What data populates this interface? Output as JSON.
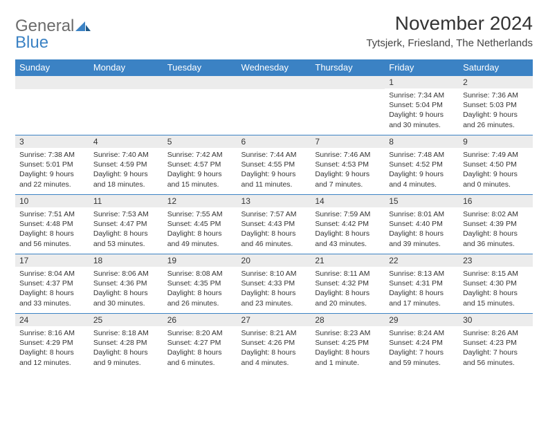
{
  "logo": {
    "text1": "General",
    "text2": "Blue"
  },
  "title": "November 2024",
  "location": "Tytsjerk, Friesland, The Netherlands",
  "colors": {
    "header_bg": "#3b82c4",
    "header_text": "#ffffff",
    "daynum_bg": "#ececec",
    "border": "#3b82c4",
    "body_text": "#333333",
    "logo_gray": "#6b6b6b",
    "logo_blue": "#3b82c4"
  },
  "weekdays": [
    "Sunday",
    "Monday",
    "Tuesday",
    "Wednesday",
    "Thursday",
    "Friday",
    "Saturday"
  ],
  "weeks": [
    [
      null,
      null,
      null,
      null,
      null,
      {
        "n": "1",
        "sr": "Sunrise: 7:34 AM",
        "ss": "Sunset: 5:04 PM",
        "d1": "Daylight: 9 hours",
        "d2": "and 30 minutes."
      },
      {
        "n": "2",
        "sr": "Sunrise: 7:36 AM",
        "ss": "Sunset: 5:03 PM",
        "d1": "Daylight: 9 hours",
        "d2": "and 26 minutes."
      }
    ],
    [
      {
        "n": "3",
        "sr": "Sunrise: 7:38 AM",
        "ss": "Sunset: 5:01 PM",
        "d1": "Daylight: 9 hours",
        "d2": "and 22 minutes."
      },
      {
        "n": "4",
        "sr": "Sunrise: 7:40 AM",
        "ss": "Sunset: 4:59 PM",
        "d1": "Daylight: 9 hours",
        "d2": "and 18 minutes."
      },
      {
        "n": "5",
        "sr": "Sunrise: 7:42 AM",
        "ss": "Sunset: 4:57 PM",
        "d1": "Daylight: 9 hours",
        "d2": "and 15 minutes."
      },
      {
        "n": "6",
        "sr": "Sunrise: 7:44 AM",
        "ss": "Sunset: 4:55 PM",
        "d1": "Daylight: 9 hours",
        "d2": "and 11 minutes."
      },
      {
        "n": "7",
        "sr": "Sunrise: 7:46 AM",
        "ss": "Sunset: 4:53 PM",
        "d1": "Daylight: 9 hours",
        "d2": "and 7 minutes."
      },
      {
        "n": "8",
        "sr": "Sunrise: 7:48 AM",
        "ss": "Sunset: 4:52 PM",
        "d1": "Daylight: 9 hours",
        "d2": "and 4 minutes."
      },
      {
        "n": "9",
        "sr": "Sunrise: 7:49 AM",
        "ss": "Sunset: 4:50 PM",
        "d1": "Daylight: 9 hours",
        "d2": "and 0 minutes."
      }
    ],
    [
      {
        "n": "10",
        "sr": "Sunrise: 7:51 AM",
        "ss": "Sunset: 4:48 PM",
        "d1": "Daylight: 8 hours",
        "d2": "and 56 minutes."
      },
      {
        "n": "11",
        "sr": "Sunrise: 7:53 AM",
        "ss": "Sunset: 4:47 PM",
        "d1": "Daylight: 8 hours",
        "d2": "and 53 minutes."
      },
      {
        "n": "12",
        "sr": "Sunrise: 7:55 AM",
        "ss": "Sunset: 4:45 PM",
        "d1": "Daylight: 8 hours",
        "d2": "and 49 minutes."
      },
      {
        "n": "13",
        "sr": "Sunrise: 7:57 AM",
        "ss": "Sunset: 4:43 PM",
        "d1": "Daylight: 8 hours",
        "d2": "and 46 minutes."
      },
      {
        "n": "14",
        "sr": "Sunrise: 7:59 AM",
        "ss": "Sunset: 4:42 PM",
        "d1": "Daylight: 8 hours",
        "d2": "and 43 minutes."
      },
      {
        "n": "15",
        "sr": "Sunrise: 8:01 AM",
        "ss": "Sunset: 4:40 PM",
        "d1": "Daylight: 8 hours",
        "d2": "and 39 minutes."
      },
      {
        "n": "16",
        "sr": "Sunrise: 8:02 AM",
        "ss": "Sunset: 4:39 PM",
        "d1": "Daylight: 8 hours",
        "d2": "and 36 minutes."
      }
    ],
    [
      {
        "n": "17",
        "sr": "Sunrise: 8:04 AM",
        "ss": "Sunset: 4:37 PM",
        "d1": "Daylight: 8 hours",
        "d2": "and 33 minutes."
      },
      {
        "n": "18",
        "sr": "Sunrise: 8:06 AM",
        "ss": "Sunset: 4:36 PM",
        "d1": "Daylight: 8 hours",
        "d2": "and 30 minutes."
      },
      {
        "n": "19",
        "sr": "Sunrise: 8:08 AM",
        "ss": "Sunset: 4:35 PM",
        "d1": "Daylight: 8 hours",
        "d2": "and 26 minutes."
      },
      {
        "n": "20",
        "sr": "Sunrise: 8:10 AM",
        "ss": "Sunset: 4:33 PM",
        "d1": "Daylight: 8 hours",
        "d2": "and 23 minutes."
      },
      {
        "n": "21",
        "sr": "Sunrise: 8:11 AM",
        "ss": "Sunset: 4:32 PM",
        "d1": "Daylight: 8 hours",
        "d2": "and 20 minutes."
      },
      {
        "n": "22",
        "sr": "Sunrise: 8:13 AM",
        "ss": "Sunset: 4:31 PM",
        "d1": "Daylight: 8 hours",
        "d2": "and 17 minutes."
      },
      {
        "n": "23",
        "sr": "Sunrise: 8:15 AM",
        "ss": "Sunset: 4:30 PM",
        "d1": "Daylight: 8 hours",
        "d2": "and 15 minutes."
      }
    ],
    [
      {
        "n": "24",
        "sr": "Sunrise: 8:16 AM",
        "ss": "Sunset: 4:29 PM",
        "d1": "Daylight: 8 hours",
        "d2": "and 12 minutes."
      },
      {
        "n": "25",
        "sr": "Sunrise: 8:18 AM",
        "ss": "Sunset: 4:28 PM",
        "d1": "Daylight: 8 hours",
        "d2": "and 9 minutes."
      },
      {
        "n": "26",
        "sr": "Sunrise: 8:20 AM",
        "ss": "Sunset: 4:27 PM",
        "d1": "Daylight: 8 hours",
        "d2": "and 6 minutes."
      },
      {
        "n": "27",
        "sr": "Sunrise: 8:21 AM",
        "ss": "Sunset: 4:26 PM",
        "d1": "Daylight: 8 hours",
        "d2": "and 4 minutes."
      },
      {
        "n": "28",
        "sr": "Sunrise: 8:23 AM",
        "ss": "Sunset: 4:25 PM",
        "d1": "Daylight: 8 hours",
        "d2": "and 1 minute."
      },
      {
        "n": "29",
        "sr": "Sunrise: 8:24 AM",
        "ss": "Sunset: 4:24 PM",
        "d1": "Daylight: 7 hours",
        "d2": "and 59 minutes."
      },
      {
        "n": "30",
        "sr": "Sunrise: 8:26 AM",
        "ss": "Sunset: 4:23 PM",
        "d1": "Daylight: 7 hours",
        "d2": "and 56 minutes."
      }
    ]
  ]
}
